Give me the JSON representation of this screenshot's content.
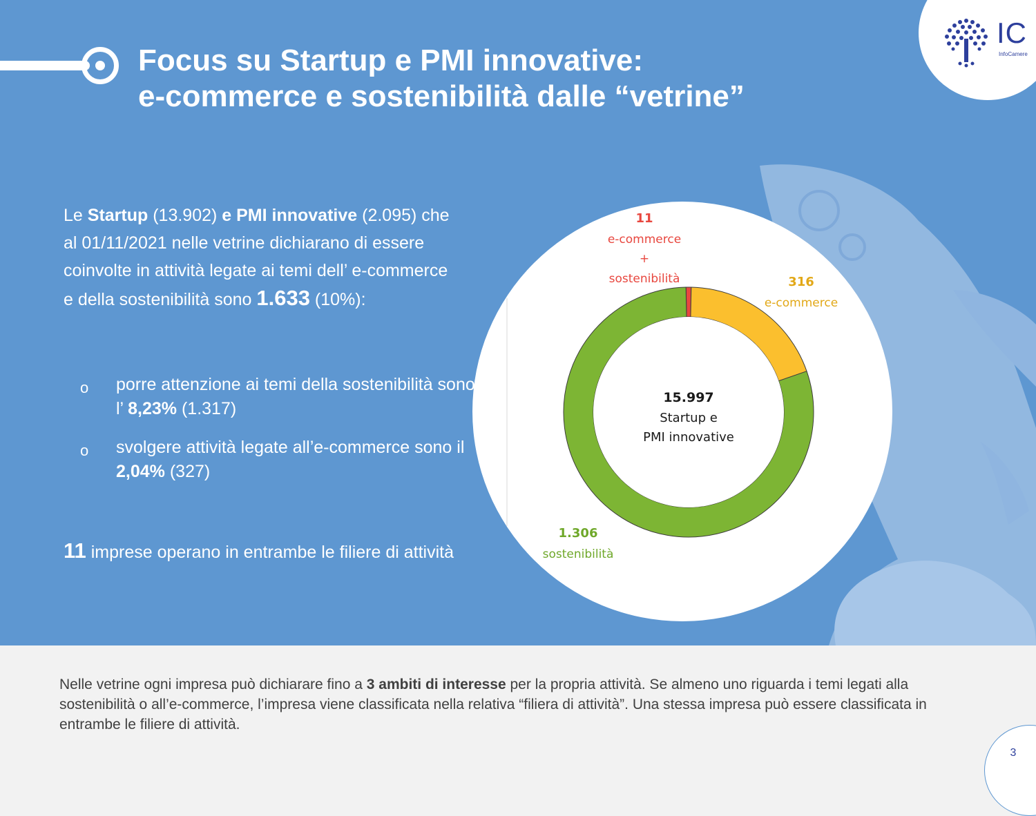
{
  "header": {
    "title_line1": "Focus su Startup e PMI innovative:",
    "title_line2": "e-commerce e sostenibilità dalle “vetrine”"
  },
  "logo": {
    "text": "IC",
    "subtext": "InfoCamere",
    "icon": "tree-logo-icon"
  },
  "intro": {
    "p1": "Le ",
    "startup_bold": "Startup",
    "p2": " (13.902) ",
    "pmi_bold": "e PMI innovative",
    "p3": " (2.095) che al 01/11/2021 nelle vetrine dichiarano di essere coinvolte in attività legate ai temi dell’ e-commerce e della sostenibilità sono ",
    "total_bold": "1.633",
    "p4": " (10%):"
  },
  "bullets": [
    {
      "marker": "o",
      "text1": "porre attenzione ai temi della sostenibilità sono l’ ",
      "bold": "8,23%",
      "text2": " (1.317)"
    },
    {
      "marker": "o",
      "text1": "svolgere attività legate all’e-commerce sono il ",
      "bold": "2,04%",
      "text2": " (327)"
    }
  ],
  "both_note": {
    "bold": "11",
    "text": " imprese operano in entrambe le filiere di attività"
  },
  "chart_data": {
    "type": "pie",
    "donut": true,
    "center_value": "15.997",
    "center_label_line1": "Startup e",
    "center_label_line2": "PMI innovative",
    "slices": [
      {
        "value": 11,
        "value_label": "11",
        "label_lines": [
          "e-commerce",
          "+",
          "sostenibilità"
        ],
        "color": "#e8473f"
      },
      {
        "value": 316,
        "value_label": "316",
        "label_lines": [
          "e-commerce"
        ],
        "color": "#fbbf2e"
      },
      {
        "value": 1306,
        "value_label": "1.306",
        "label_lines": [
          "sostenibilità"
        ],
        "color": "#7db534"
      }
    ],
    "label_colors": [
      "#e8473f",
      "#e2a818",
      "#6fa82a"
    ]
  },
  "footer": {
    "text1": "Nelle vetrine ogni impresa può dichiarare fino a ",
    "bold": "3 ambiti di interesse",
    "text2": " per la propria attività. Se almeno uno riguarda i temi legati alla sostenibilità o all’e-commerce, l’impresa viene classificata nella relativa “filiera di attività”. Una stessa impresa può essere classificata in entrambe le filiere di attività.",
    "page_number": "3"
  },
  "colors": {
    "background": "#5e97d1",
    "footer_bg": "#f2f2f2",
    "brand": "#2d3f9c"
  }
}
